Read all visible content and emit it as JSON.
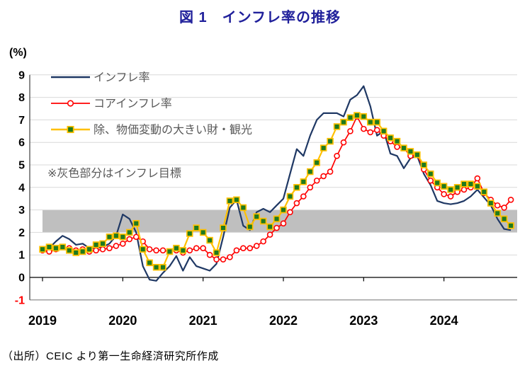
{
  "title": "図 1　インフレ率の推移",
  "source_note": "（出所）CEIC より第一生命経済研究所作成",
  "colors": {
    "title": "#20209B",
    "gridline": "#D9D9D9",
    "zero_axis": "#000000",
    "frame": "#808080",
    "left_axis": "#404040",
    "tick_label": "#000000",
    "negative_tick_label": "#FF0000",
    "legend_text": "#595959",
    "band": "#BFBFBF"
  },
  "chart_data": {
    "type": "line",
    "title": "図 1　インフレ率の推移",
    "unit_label": "(%)",
    "frequency": "monthly",
    "x_start": "2019-01",
    "x_end": "2024-11",
    "n_points": 71,
    "x_tick_labels": [
      "2019",
      "2020",
      "2021",
      "2022",
      "2023",
      "2024"
    ],
    "y_ticks": [
      9,
      8,
      7,
      6,
      5,
      4,
      3,
      2,
      1,
      0,
      -1
    ],
    "ylim": [
      -1,
      9
    ],
    "grid": true,
    "legend_position": "top-left-inside",
    "target_band": {
      "note": "※灰色部分はインフレ目標",
      "from": 2,
      "to": 3,
      "color": "#BFBFBF"
    },
    "series": [
      {
        "name": "インフレ率",
        "color": "#1F3864",
        "marker": "none",
        "values": [
          1.1,
          1.3,
          1.6,
          1.85,
          1.7,
          1.45,
          1.5,
          1.3,
          1.3,
          1.35,
          1.5,
          1.85,
          2.8,
          2.6,
          2.0,
          0.5,
          -0.1,
          -0.15,
          0.2,
          0.5,
          0.95,
          0.3,
          0.9,
          0.5,
          0.4,
          0.3,
          0.6,
          1.8,
          3.1,
          3.45,
          2.3,
          2.1,
          2.9,
          3.05,
          2.9,
          3.2,
          3.5,
          4.6,
          5.7,
          5.4,
          6.3,
          7.0,
          7.3,
          7.3,
          7.3,
          7.15,
          7.9,
          8.1,
          8.5,
          7.6,
          6.3,
          6.5,
          5.5,
          5.4,
          4.85,
          5.3,
          5.4,
          4.6,
          4.1,
          3.4,
          3.3,
          3.25,
          3.3,
          3.4,
          3.6,
          3.9,
          3.55,
          3.2,
          2.6,
          2.15,
          2.1
        ]
      },
      {
        "name": "コアインフレ率",
        "color": "#FF0000",
        "marker": "open-circle",
        "values": [
          1.2,
          1.15,
          1.25,
          1.35,
          1.3,
          1.2,
          1.25,
          1.15,
          1.2,
          1.25,
          1.3,
          1.4,
          1.5,
          1.7,
          1.8,
          1.6,
          1.25,
          1.2,
          1.2,
          1.15,
          1.2,
          1.1,
          1.2,
          1.3,
          1.3,
          1.0,
          0.8,
          0.8,
          0.9,
          1.2,
          1.3,
          1.3,
          1.4,
          1.6,
          1.9,
          2.2,
          2.4,
          2.9,
          3.3,
          3.6,
          4.0,
          4.3,
          4.5,
          4.7,
          5.4,
          6.0,
          6.5,
          7.15,
          6.6,
          6.45,
          6.55,
          6.3,
          6.05,
          5.8,
          5.75,
          5.4,
          5.45,
          4.8,
          4.3,
          4.0,
          3.7,
          3.6,
          3.8,
          3.9,
          4.0,
          4.4,
          3.75,
          3.45,
          3.2,
          3.1,
          3.45
        ]
      },
      {
        "name": "除、物価変動の大きい財・観光",
        "color": "#FFC000",
        "marker": "filled-square",
        "marker_color": "#1E7A1E",
        "values": [
          1.25,
          1.35,
          1.3,
          1.35,
          1.2,
          1.1,
          1.15,
          1.25,
          1.45,
          1.5,
          1.8,
          1.85,
          1.8,
          2.0,
          2.4,
          1.25,
          0.65,
          0.45,
          0.45,
          1.15,
          1.3,
          1.2,
          1.95,
          2.2,
          2.0,
          1.65,
          1.1,
          2.2,
          3.4,
          3.45,
          3.1,
          2.25,
          2.7,
          2.5,
          2.25,
          2.6,
          3.0,
          3.6,
          4.0,
          4.25,
          4.7,
          5.1,
          5.75,
          6.05,
          6.7,
          6.9,
          7.1,
          7.2,
          7.15,
          6.9,
          6.9,
          6.5,
          6.2,
          6.05,
          5.75,
          5.6,
          5.45,
          5.0,
          4.6,
          4.2,
          4.05,
          3.9,
          4.0,
          4.15,
          4.15,
          4.05,
          3.8,
          3.3,
          2.85,
          2.6,
          2.3
        ]
      }
    ]
  }
}
